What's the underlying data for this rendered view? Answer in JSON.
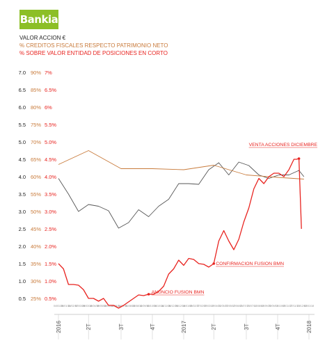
{
  "logo": {
    "text": "Bankia",
    "color": "#8cbf26"
  },
  "chart_data": {
    "type": "line",
    "legend": [
      {
        "name": "VALOR ACCION €",
        "color": "#222222"
      },
      {
        "name": "% CREDITOS FISCALES RESPECTO PATRIMONIO NETO",
        "color": "#c87a3a"
      },
      {
        "name": "% SOBRE VALOR ENTIDAD DE POSICIONES EN CORTO",
        "color": "#e8231f"
      }
    ],
    "y_axes": {
      "valor_accion": {
        "ticks": [
          "7.0",
          "6.5",
          "6.0",
          "5.5",
          "5.0",
          "4.5",
          "4.0",
          "3.5",
          "3.0",
          "2.5",
          "2.0",
          "1.5",
          "1.0",
          "0.5"
        ],
        "range": [
          0.5,
          7.0
        ],
        "color": "#222222"
      },
      "creditos_fiscales": {
        "ticks": [
          "90%",
          "85%",
          "80%",
          "75%",
          "70%",
          "65%",
          "60%",
          "55%",
          "50%",
          "45%",
          "40%",
          "35%",
          "30%",
          "25%"
        ],
        "range": [
          25,
          90
        ],
        "color": "#c87a3a"
      },
      "posiciones_corto": {
        "ticks": [
          "7%",
          "6.5%",
          "6%",
          "5.5%",
          "5.0%",
          "4.5%",
          "4.0%",
          "3.5%",
          "3.0%",
          "2.5%",
          "2.0%",
          "1.5%",
          "1.0%",
          "0.5%"
        ],
        "range": [
          0.5,
          7.0
        ],
        "color": "#e8231f"
      }
    },
    "x_axis": {
      "range": [
        0,
        100
      ],
      "major_labels": [
        {
          "label": "2016",
          "x": 0
        },
        {
          "label": "2T",
          "x": 12
        },
        {
          "label": "3T",
          "x": 25
        },
        {
          "label": "4T",
          "x": 37.5
        },
        {
          "label": "2017",
          "x": 50
        },
        {
          "label": "2T",
          "x": 62
        },
        {
          "label": "3T",
          "x": 75
        },
        {
          "label": "4T",
          "x": 87.5
        },
        {
          "label": "2018",
          "x": 100
        }
      ],
      "date_labels": [
        "04/01/16",
        "25/01/16",
        "15/02/16",
        "07/03/16",
        "28/03/16",
        "18/04/16",
        "09/05/16",
        "30/05/16",
        "20/06/16",
        "11/07/16",
        "01/08/16",
        "22/08/16",
        "12/09/16",
        "03/10/16",
        "24/10/16",
        "14/11/16",
        "05/12/16",
        "26/12/16",
        "16/01/17",
        "06/02/17",
        "27/02/17",
        "20/03/17",
        "10/04/17",
        "01/05/17",
        "22/05/17",
        "12/06/17",
        "03/07/17",
        "24/07/17",
        "14/08/17",
        "04/09/17",
        "25/09/17",
        "16/10/17",
        "06/11/17",
        "27/11/17",
        "18/12/17",
        "08/01/18"
      ]
    },
    "series": [
      {
        "name": "VALOR ACCION €",
        "axis": "valor_accion",
        "color": "#555555",
        "x": [
          0,
          4,
          8,
          12,
          16,
          20,
          24,
          28,
          32,
          36,
          40,
          44,
          48,
          52,
          56,
          60,
          64,
          68,
          72,
          76,
          80,
          84,
          88,
          92,
          96,
          98
        ],
        "y": [
          3.95,
          3.5,
          3.0,
          3.2,
          3.15,
          3.02,
          2.52,
          2.68,
          3.05,
          2.85,
          3.15,
          3.35,
          3.8,
          3.8,
          3.78,
          4.2,
          4.4,
          4.05,
          4.42,
          4.32,
          4.05,
          3.95,
          4.05,
          4.05,
          4.18,
          4.0
        ]
      },
      {
        "name": "% CREDITOS FISCALES RESPECTO PATRIMONIO NETO",
        "axis": "creditos_fiscales",
        "color": "#c87a3a",
        "x": [
          0,
          12,
          25,
          37.5,
          50,
          62,
          75,
          87.5,
          98
        ],
        "y": [
          63.5,
          67.5,
          62.3,
          62.3,
          62.0,
          63.3,
          60.5,
          59.8,
          59.3
        ]
      },
      {
        "name": "% SOBRE VALOR ENTIDAD DE POSICIONES EN CORTO",
        "axis": "posiciones_corto",
        "color": "#e8231f",
        "x": [
          0,
          2,
          4,
          6,
          8,
          10,
          12,
          14,
          16,
          18,
          20,
          22,
          24,
          26,
          28,
          30,
          32,
          34,
          36,
          38,
          40,
          42,
          44,
          46,
          48,
          50,
          52,
          54,
          56,
          58,
          60,
          62,
          64,
          66,
          68,
          70,
          72,
          74,
          76,
          78,
          80,
          82,
          84,
          86,
          88,
          90,
          92,
          94,
          95,
          96,
          97
        ],
        "y": [
          1.5,
          1.35,
          0.9,
          0.9,
          0.88,
          0.75,
          0.5,
          0.5,
          0.42,
          0.5,
          0.3,
          0.3,
          0.22,
          0.3,
          0.4,
          0.5,
          0.6,
          0.58,
          0.62,
          0.62,
          0.7,
          0.85,
          1.2,
          1.35,
          1.6,
          1.45,
          1.65,
          1.62,
          1.5,
          1.48,
          1.4,
          1.5,
          2.15,
          2.45,
          2.15,
          1.9,
          2.2,
          2.7,
          3.1,
          3.65,
          3.95,
          3.8,
          4.0,
          4.1,
          4.1,
          4.0,
          4.2,
          4.5,
          4.5,
          4.52,
          2.5
        ]
      }
    ],
    "annotations": [
      {
        "text": "VENTA ACCIONES DICIEMBRE",
        "x": 96,
        "y": 4.52,
        "axis": "posiciones_corto",
        "color": "#e8231f"
      },
      {
        "text": "CONFIRMACION FUSION BMN",
        "x": 62,
        "y": 1.5,
        "axis": "posiciones_corto",
        "color": "#e8231f"
      },
      {
        "text": "ANUNCIO FUSION BMN",
        "x": 36,
        "y": 0.62,
        "axis": "posiciones_corto",
        "color": "#e8231f"
      }
    ]
  }
}
